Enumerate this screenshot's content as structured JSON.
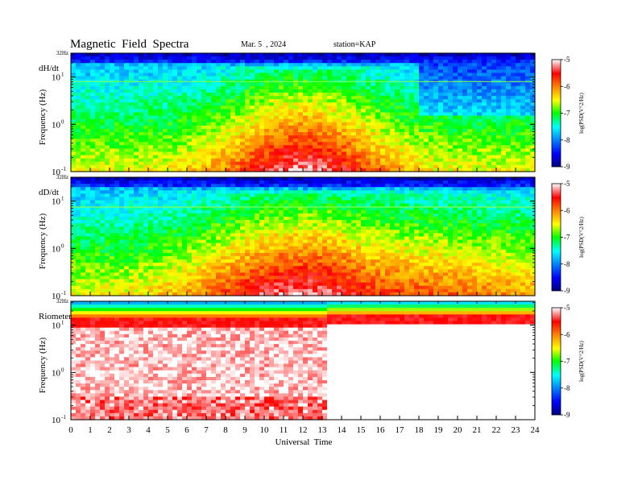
{
  "header": {
    "title": "Magnetic  Field  Spectra",
    "date": "Mar. 5  , 2024",
    "station": "station=KAP"
  },
  "chart_data": {
    "type": "heatmap",
    "xlabel": "Universal  Time",
    "xlim": [
      0,
      24
    ],
    "x_ticks": [
      "0",
      "1",
      "2",
      "3",
      "4",
      "5",
      "6",
      "7",
      "8",
      "9",
      "10",
      "11",
      "12",
      "13",
      "14",
      "15",
      "16",
      "17",
      "18",
      "19",
      "20",
      "21",
      "22",
      "23",
      "24"
    ],
    "yscale": "log",
    "ylim_hz": [
      0.1,
      32
    ],
    "y_ticks": [
      {
        "base": "10",
        "exp": "-1"
      },
      {
        "base": "10",
        "exp": "0"
      },
      {
        "base": "10",
        "exp": "1"
      }
    ],
    "y_top_label": "32Hz",
    "ylabel": "Frequency  (Hz)",
    "colorbar": {
      "label": "log(PSD(V^2/Hz)",
      "ticks": [
        "-5",
        "-6",
        "-7",
        "-8",
        "-9"
      ],
      "range": [
        -9,
        -5
      ],
      "scale": "jet"
    },
    "panels": [
      {
        "name": "dH/dt",
        "description_hours": {
          "strong_activity_start": 6.5,
          "strong_activity_peak": 12,
          "strong_activity_end": 18
        },
        "noise_line_hz": 8
      },
      {
        "name": "dD/dt",
        "description_hours": {
          "strong_activity_start": 6.5,
          "strong_activity_peak": 12,
          "strong_activity_end": 23
        },
        "noise_line_hz": 7.5
      },
      {
        "name": "Riometer",
        "description_hours": {
          "mode_change": 13.2
        },
        "noise_line_hz": 0
      }
    ]
  }
}
